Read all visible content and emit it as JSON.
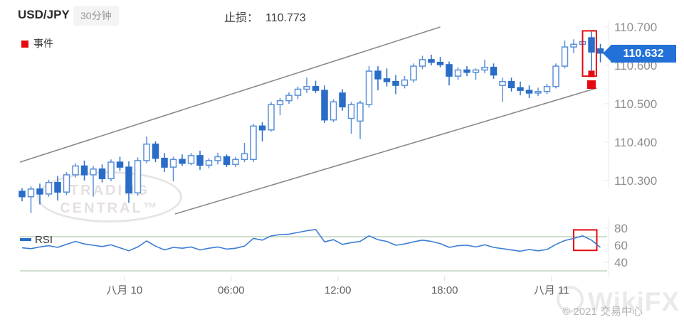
{
  "header": {
    "symbol": "USD/JPY",
    "timeframe": "30分钟",
    "stop_label": "止损：",
    "stop_value": "110.773"
  },
  "legend": {
    "event_label": "事件"
  },
  "price_badge": {
    "value": "110.632"
  },
  "watermarks": {
    "tc_line1": "TRADING",
    "tc_line2": "CENTRAL™",
    "wikifx": "WikiFX",
    "copyright": "© 2021 交易中心"
  },
  "colors": {
    "up_stroke": "#5a8fd8",
    "up_fill": "#ffffff",
    "down_fill": "#2a6dc6",
    "badge": "#2271d8",
    "alert_red": "#e60a10",
    "axis_text": "#8e8e8e",
    "axis_line": "#e8e8e8",
    "time_text": "#5f5f5f",
    "trend_line": "#8a8a8a",
    "rsi_line": "#3c7cd4",
    "guide_green": "#9dbf9d"
  },
  "chart_data": {
    "type": "candlestick+rsi",
    "title": "USD/JPY 30分钟",
    "price_axis": {
      "ticks": [
        {
          "label": "110.700",
          "value": 110.7
        },
        {
          "label": "110.600",
          "value": 110.6
        },
        {
          "label": "110.500",
          "value": 110.5
        },
        {
          "label": "110.400",
          "value": 110.4
        },
        {
          "label": "110.300",
          "value": 110.3
        }
      ],
      "current_price": 110.632
    },
    "time_axis": {
      "labels": [
        {
          "text": "八月 10",
          "index": 11.5
        },
        {
          "text": "06:00",
          "index": 23.5
        },
        {
          "text": "12:00",
          "index": 35.5
        },
        {
          "text": "18:00",
          "index": 47.5
        },
        {
          "text": "八月 11",
          "index": 59.5
        }
      ]
    },
    "candles": [
      [
        110.272,
        110.28,
        110.246,
        110.258
      ],
      [
        110.258,
        110.285,
        110.215,
        110.278
      ],
      [
        110.278,
        110.292,
        110.238,
        110.265
      ],
      [
        110.265,
        110.302,
        110.258,
        110.295
      ],
      [
        110.295,
        110.312,
        110.248,
        110.27
      ],
      [
        110.27,
        110.322,
        110.262,
        110.315
      ],
      [
        110.315,
        110.345,
        110.308,
        110.338
      ],
      [
        110.338,
        110.352,
        110.3,
        110.315
      ],
      [
        110.315,
        110.338,
        110.258,
        110.33
      ],
      [
        110.33,
        110.342,
        110.295,
        110.305
      ],
      [
        110.305,
        110.355,
        110.298,
        110.348
      ],
      [
        110.348,
        110.362,
        110.325,
        110.335
      ],
      [
        110.335,
        110.35,
        110.242,
        110.268
      ],
      [
        110.268,
        110.36,
        110.26,
        110.352
      ],
      [
        110.352,
        110.415,
        110.345,
        110.395
      ],
      [
        110.395,
        110.402,
        110.348,
        110.358
      ],
      [
        110.358,
        110.372,
        110.322,
        110.335
      ],
      [
        110.335,
        110.362,
        110.298,
        110.355
      ],
      [
        110.355,
        110.368,
        110.338,
        110.345
      ],
      [
        110.345,
        110.372,
        110.34,
        110.365
      ],
      [
        110.365,
        110.378,
        110.328,
        110.34
      ],
      [
        110.34,
        110.358,
        110.332,
        110.352
      ],
      [
        110.352,
        110.372,
        110.342,
        110.362
      ],
      [
        110.362,
        110.368,
        110.335,
        110.342
      ],
      [
        110.342,
        110.362,
        110.335,
        110.355
      ],
      [
        110.355,
        110.398,
        110.348,
        110.37
      ],
      [
        110.355,
        110.448,
        110.348,
        110.442
      ],
      [
        110.442,
        110.452,
        110.402,
        110.432
      ],
      [
        110.432,
        110.505,
        110.428,
        110.498
      ],
      [
        110.498,
        110.515,
        110.47,
        110.508
      ],
      [
        110.508,
        110.53,
        110.5,
        110.522
      ],
      [
        110.522,
        110.545,
        110.512,
        110.538
      ],
      [
        110.538,
        110.568,
        110.528,
        110.545
      ],
      [
        110.545,
        110.56,
        110.528,
        110.535
      ],
      [
        110.535,
        110.548,
        110.45,
        110.458
      ],
      [
        110.458,
        110.512,
        110.452,
        110.505
      ],
      [
        110.528,
        110.538,
        110.482,
        110.492
      ],
      [
        110.462,
        110.505,
        110.422,
        110.498
      ],
      [
        110.455,
        110.508,
        110.408,
        110.502
      ],
      [
        110.498,
        110.598,
        110.49,
        110.585
      ],
      [
        110.585,
        110.598,
        110.535,
        110.565
      ],
      [
        110.565,
        110.592,
        110.545,
        110.558
      ],
      [
        110.558,
        110.575,
        110.525,
        110.548
      ],
      [
        110.548,
        110.572,
        110.54,
        110.562
      ],
      [
        110.562,
        110.605,
        110.555,
        110.598
      ],
      [
        110.598,
        110.625,
        110.59,
        110.615
      ],
      [
        110.615,
        110.628,
        110.6,
        110.608
      ],
      [
        110.608,
        110.622,
        110.595,
        110.602
      ],
      [
        110.602,
        110.61,
        110.548,
        110.572
      ],
      [
        110.572,
        110.595,
        110.562,
        110.588
      ],
      [
        110.588,
        110.598,
        110.572,
        110.582
      ],
      [
        110.582,
        110.592,
        110.562,
        110.588
      ],
      [
        110.588,
        110.615,
        110.58,
        110.595
      ],
      [
        110.595,
        110.605,
        110.565,
        110.575
      ],
      [
        110.548,
        110.568,
        110.505,
        110.558
      ],
      [
        110.558,
        110.568,
        110.532,
        110.542
      ],
      [
        110.542,
        110.558,
        110.522,
        110.535
      ],
      [
        110.535,
        110.548,
        110.515,
        110.528
      ],
      [
        110.528,
        110.542,
        110.52,
        110.532
      ],
      [
        110.532,
        110.552,
        110.525,
        110.545
      ],
      [
        110.545,
        110.605,
        110.54,
        110.598
      ],
      [
        110.598,
        110.665,
        110.592,
        110.648
      ],
      [
        110.648,
        110.668,
        110.632,
        110.655
      ],
      [
        110.655,
        110.685,
        110.64,
        110.662
      ],
      [
        110.672,
        110.688,
        110.585,
        110.635
      ],
      [
        110.643,
        110.656,
        110.608,
        110.632
      ]
    ],
    "trend_lines": [
      {
        "x1_index": -0.25,
        "p1": 110.348,
        "x2_index": 47.0,
        "p2": 110.7
      },
      {
        "x1_index": 17.2,
        "p1": 110.213,
        "x2_index": 64.6,
        "p2": 110.541
      }
    ],
    "event_markers": [
      {
        "index": 64,
        "price": 110.578,
        "size": 9
      },
      {
        "index": 64,
        "price": 110.55,
        "size": 12
      }
    ],
    "highlight_boxes": {
      "price": {
        "index_from": 63.0,
        "index_to": 64.55,
        "price_from": 110.572,
        "price_to": 110.69
      },
      "rsi": {
        "index_from": 62.0,
        "index_to": 64.6,
        "rsi_from": 54,
        "rsi_to": 78
      }
    },
    "rsi": {
      "label": "RSI",
      "axis_ticks": [
        80,
        60,
        40
      ],
      "guides": [
        70,
        30
      ],
      "values": [
        57,
        56,
        58,
        59.5,
        57.5,
        61,
        64.5,
        61.5,
        60,
        58.5,
        60.5,
        57,
        53.5,
        58,
        65,
        59,
        54.5,
        57.5,
        56.5,
        58,
        54.5,
        56.5,
        58,
        55.5,
        56.5,
        59,
        68,
        66,
        71,
        72.5,
        73,
        75,
        77,
        78.5,
        64,
        66.5,
        61,
        63,
        64.5,
        71,
        66.5,
        64.5,
        60,
        61.5,
        64,
        66,
        64.5,
        62,
        57.5,
        59.5,
        60,
        58,
        60.5,
        57.5,
        56,
        54.5,
        53,
        55,
        53.5,
        55,
        61,
        65.5,
        68,
        71,
        66,
        57.5
      ]
    }
  }
}
